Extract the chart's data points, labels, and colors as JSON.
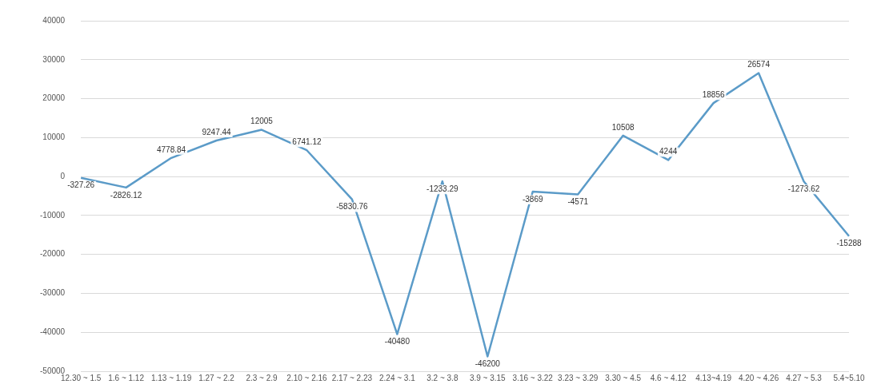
{
  "chart_data": {
    "type": "line",
    "categories": [
      "12.30 ~ 1.5",
      "1.6 ~ 1.12",
      "1.13 ~ 1.19",
      "1.27 ~ 2.2",
      "2.3 ~ 2.9",
      "2.10 ~ 2.16",
      "2.17 ~ 2.23",
      "2.24 ~ 3.1",
      "3.2 ~ 3.8",
      "3.9 ~ 3.15",
      "3.16 ~ 3.22",
      "3.23 ~ 3.29",
      "3.30 ~ 4.5",
      "4.6 ~ 4.12",
      "4.13~4.19",
      "4.20 ~ 4.26",
      "4.27 ~ 5.3",
      "5.4~5.10"
    ],
    "series": [
      {
        "color": "#5b9bc8",
        "values": [
          -327.26,
          -2826.12,
          4778.84,
          9247.44,
          12005,
          6741.12,
          -5830.76,
          -40480,
          -1233.29,
          -46200,
          -3869,
          -4571,
          10508,
          4244,
          18856,
          26574,
          -1273.62,
          -15288
        ]
      }
    ],
    "ylim": [
      -50000,
      40000
    ],
    "yticks": [
      -50000,
      -40000,
      -30000,
      -20000,
      -10000,
      0,
      10000,
      20000,
      30000,
      40000
    ],
    "grid": "y",
    "legend": false,
    "marker": "none",
    "line_style": "solid",
    "data_labels": true
  }
}
